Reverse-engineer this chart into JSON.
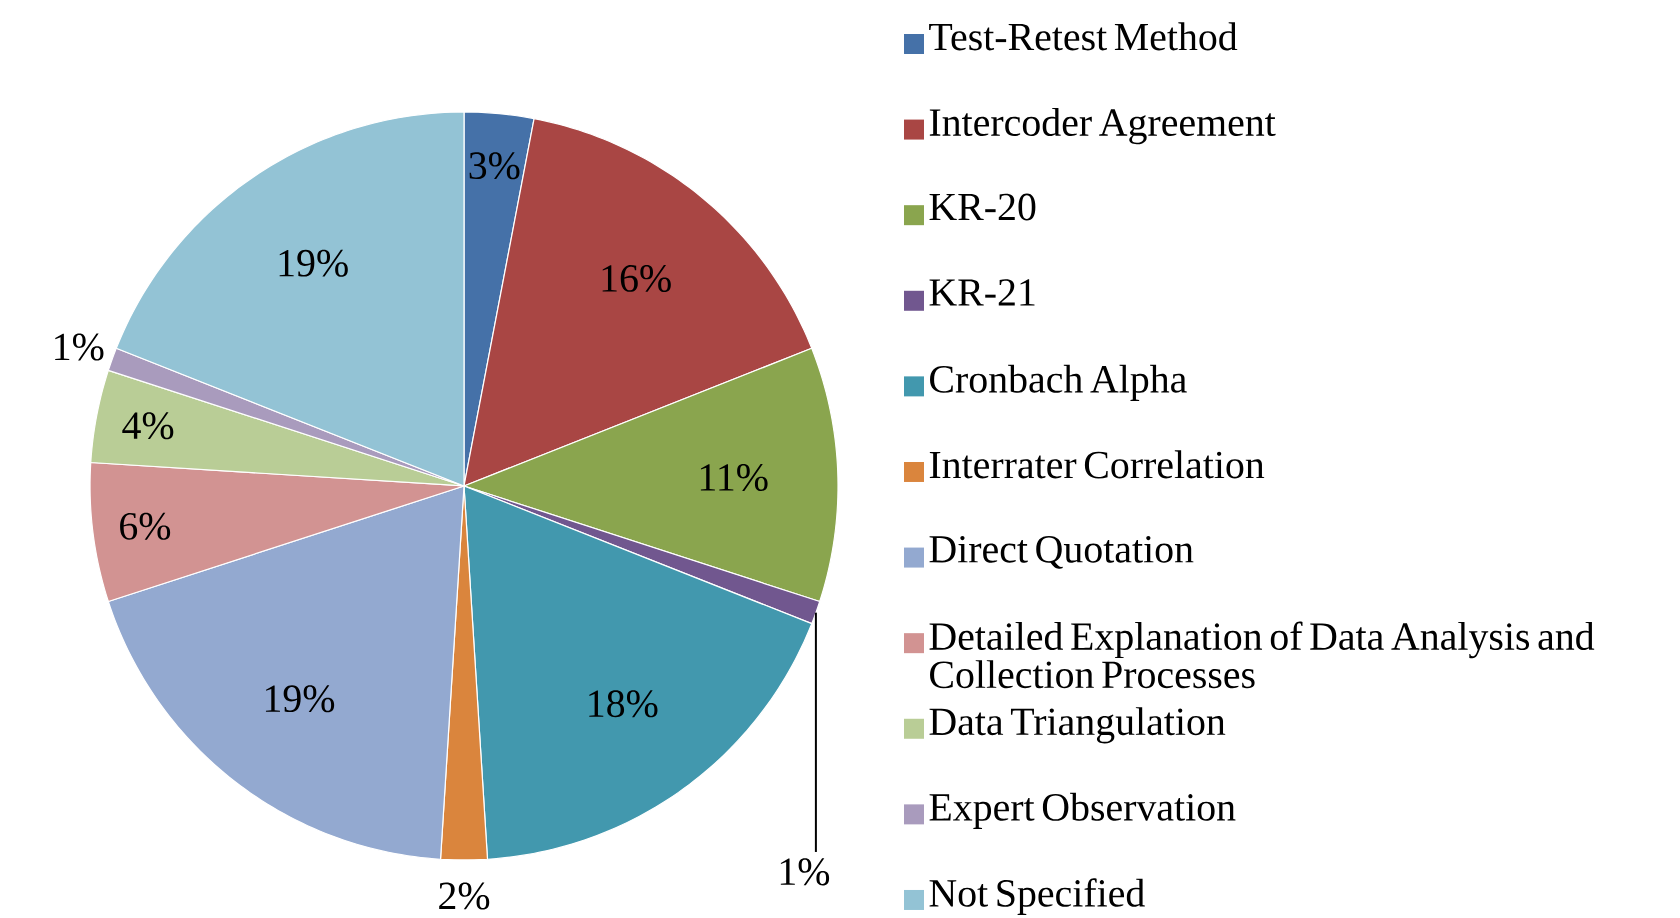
{
  "chart_data": {
    "type": "pie",
    "categories": [
      "Test-Retest Method",
      "Intercoder Agreement",
      "KR-20",
      "KR-21",
      "Cronbach Alpha",
      "Interrater Correlation",
      "Direct Quotation",
      "Detailed Explanation of Data Analysis and Collection Processes",
      "Data Triangulation",
      "Expert Observation",
      "Not Specified"
    ],
    "values": [
      3,
      16,
      11,
      1,
      18,
      2,
      19,
      6,
      4,
      1,
      19
    ],
    "colors": [
      "#4571a8",
      "#a94644",
      "#8aa54e",
      "#71578f",
      "#4298ae",
      "#da853d",
      "#93a9d0",
      "#d29392",
      "#b9cd96",
      "#a99bbd",
      "#93c3d5"
    ],
    "value_labels": [
      "3%",
      "16%",
      "11%",
      "1%",
      "18%",
      "2%",
      "19%",
      "6%",
      "4%",
      "1%",
      "19%"
    ],
    "legend": "right"
  }
}
